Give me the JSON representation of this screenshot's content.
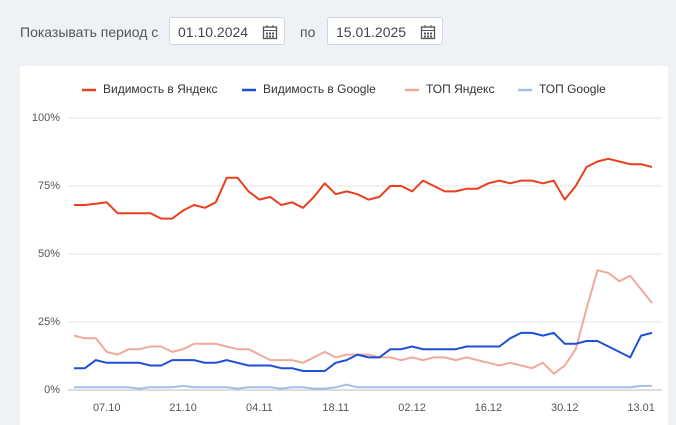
{
  "filter": {
    "label_from": "Показывать период с",
    "date_from": "01.10.2024",
    "label_to": "по",
    "date_to": "15.01.2025"
  },
  "chart_data": {
    "type": "line",
    "legend": "top",
    "grid": true,
    "categories": [
      null,
      null,
      null,
      "07.10",
      null,
      null,
      null,
      null,
      null,
      null,
      "21.10",
      null,
      null,
      null,
      null,
      null,
      null,
      "04.11",
      null,
      null,
      null,
      null,
      null,
      null,
      "18.11",
      null,
      null,
      null,
      null,
      null,
      null,
      "02.12",
      null,
      null,
      null,
      null,
      null,
      null,
      "16.12",
      null,
      null,
      null,
      null,
      null,
      null,
      "30.12",
      null,
      null,
      null,
      null,
      null,
      null,
      "13.01",
      null
    ],
    "ylim": [
      0,
      100
    ],
    "yticks": [
      {
        "value": 0,
        "label": "0%"
      },
      {
        "value": 25,
        "label": "25%"
      },
      {
        "value": 50,
        "label": "50%"
      },
      {
        "value": 75,
        "label": "75%"
      },
      {
        "value": 100,
        "label": "100%"
      }
    ],
    "series": [
      {
        "name": "Видимость в Яндекс",
        "color": "#e8401e",
        "values": [
          68,
          68,
          68.5,
          69,
          65,
          65,
          65,
          65,
          63,
          63,
          66,
          68,
          67,
          69,
          78,
          78,
          73,
          70,
          71,
          68,
          69,
          67,
          71,
          76,
          72,
          73,
          72,
          70,
          71,
          75,
          75,
          73,
          77,
          75,
          73,
          73,
          74,
          74,
          76,
          77,
          76,
          77,
          77,
          76,
          77,
          70,
          75,
          82,
          84,
          85,
          84,
          83,
          83,
          82
        ]
      },
      {
        "name": "Видимость в Google",
        "color": "#1f4fd6",
        "values": [
          8,
          8,
          11,
          10,
          10,
          10,
          10,
          9,
          9,
          11,
          11,
          11,
          10,
          10,
          11,
          10,
          9,
          9,
          9,
          8,
          8,
          7,
          7,
          7,
          10,
          11,
          13,
          12,
          12,
          15,
          15,
          16,
          15,
          15,
          15,
          15,
          16,
          16,
          16,
          16,
          19,
          21,
          21,
          20,
          21,
          17,
          17,
          18,
          18,
          16,
          14,
          12,
          20,
          21
        ]
      },
      {
        "name": "ТОП Яндекс",
        "color": "#f0aa9a",
        "values": [
          20,
          19,
          19,
          14,
          13,
          15,
          15,
          16,
          16,
          14,
          15,
          17,
          17,
          17,
          16,
          15,
          15,
          13,
          11,
          11,
          11,
          10,
          12,
          14,
          12,
          13,
          13,
          13,
          12,
          12,
          11,
          12,
          11,
          12,
          12,
          11,
          12,
          11,
          10,
          9,
          10,
          9,
          8,
          10,
          6,
          9,
          15,
          30,
          44,
          43,
          40,
          42,
          37,
          32
        ]
      },
      {
        "name": "ТОП Google",
        "color": "#a4bfe6",
        "values": [
          1,
          1,
          1,
          1,
          1,
          1,
          0.5,
          1,
          1,
          1,
          1.5,
          1,
          1,
          1,
          1,
          0.5,
          1,
          1,
          1,
          0.5,
          1,
          1,
          0.5,
          0.5,
          1,
          2,
          1,
          1,
          1,
          1,
          1,
          1,
          1,
          1,
          1,
          1,
          1,
          1,
          1,
          1,
          1,
          1,
          1,
          1,
          1,
          1,
          1,
          1,
          1,
          1,
          1,
          1,
          1.5,
          1.5
        ]
      }
    ]
  }
}
